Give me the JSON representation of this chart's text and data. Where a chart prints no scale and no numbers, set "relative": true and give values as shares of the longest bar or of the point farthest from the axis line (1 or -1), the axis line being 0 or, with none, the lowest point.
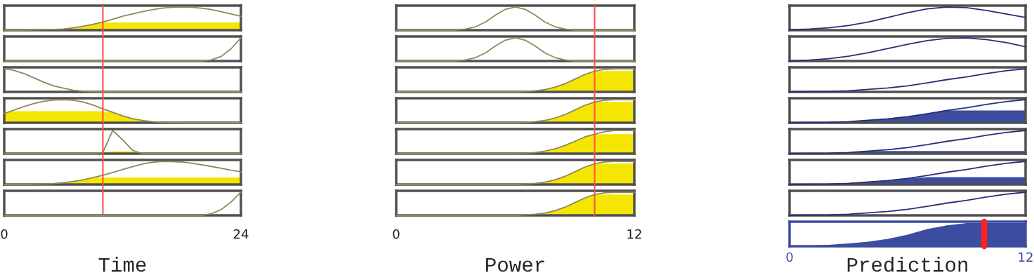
{
  "chart_data": [
    {
      "type": "line",
      "relative": true,
      "categories": [
        null,
        null,
        null,
        null,
        null,
        null,
        null,
        null,
        null,
        null,
        null,
        null,
        null,
        null,
        null,
        null,
        null,
        null,
        null,
        null,
        null,
        null,
        null,
        null,
        null
      ],
      "tick_labels": false,
      "series": [
        {
          "type": "area",
          "color": "#f4e600",
          "values": [
            0,
            0,
            0,
            0.01,
            0.02,
            0.03,
            0.05,
            0.1,
            0.17,
            0.25,
            0.33,
            0.33,
            0.33,
            0.33,
            0.33,
            0.33,
            0.33,
            0.33,
            0.33,
            0.33,
            0.33,
            0.33,
            0.33,
            0.33,
            0.33
          ]
        },
        {
          "color": "#8c8a5a",
          "values": [
            0,
            0,
            0,
            0.01,
            0.02,
            0.03,
            0.05,
            0.1,
            0.17,
            0.25,
            0.35,
            0.47,
            0.6,
            0.7,
            0.8,
            0.88,
            0.95,
            0.99,
            1,
            0.99,
            0.95,
            0.89,
            0.8,
            0.7,
            0.6
          ]
        }
      ]
    },
    {
      "type": "line",
      "relative": true,
      "categories": [
        null,
        null,
        null,
        null,
        null,
        null,
        null,
        null,
        null,
        null,
        null,
        null,
        null,
        null,
        null,
        null,
        null,
        null,
        null,
        null,
        null,
        null,
        null,
        null,
        null
      ],
      "tick_labels": false,
      "series": [
        {
          "color": "#8c8a5a",
          "values": [
            0,
            0,
            0,
            0,
            0,
            0,
            0,
            0,
            0,
            0,
            0,
            0,
            0,
            0,
            0,
            0,
            0,
            0,
            0,
            0,
            0,
            0.05,
            0.2,
            0.53,
            1
          ]
        }
      ]
    },
    {
      "type": "line",
      "relative": true,
      "categories": [
        null,
        null,
        null,
        null,
        null,
        null,
        null,
        null,
        null,
        null,
        null,
        null,
        null,
        null,
        null,
        null,
        null,
        null,
        null,
        null,
        null,
        null,
        null,
        null,
        null
      ],
      "tick_labels": false,
      "series": [
        {
          "color": "#8c8a5a",
          "values": [
            1,
            0.93,
            0.79,
            0.61,
            0.42,
            0.26,
            0.16,
            0.07,
            0.03,
            0.01,
            0,
            0,
            0,
            0,
            0,
            0,
            0,
            0,
            0,
            0,
            0,
            0,
            0,
            0,
            0
          ]
        }
      ]
    },
    {
      "type": "line",
      "relative": true,
      "categories": [
        null,
        null,
        null,
        null,
        null,
        null,
        null,
        null,
        null,
        null,
        null,
        null,
        null,
        null,
        null,
        null,
        null,
        null,
        null,
        null,
        null,
        null,
        null,
        null,
        null
      ],
      "tick_labels": false,
      "series": [
        {
          "type": "area",
          "color": "#f4e600",
          "values": [
            0.4,
            0.5,
            0.5,
            0.5,
            0.5,
            0.5,
            0.5,
            0.5,
            0.5,
            0.5,
            0.5,
            0.45,
            0.3,
            0.18,
            0.1,
            0.05,
            0.02,
            0.01,
            0,
            0,
            0,
            0,
            0,
            0,
            0
          ]
        },
        {
          "color": "#8c8a5a",
          "values": [
            0.4,
            0.55,
            0.7,
            0.83,
            0.93,
            0.98,
            1,
            0.97,
            0.9,
            0.77,
            0.6,
            0.45,
            0.3,
            0.18,
            0.1,
            0.05,
            0.02,
            0.01,
            0,
            0,
            0,
            0,
            0,
            0,
            0
          ]
        }
      ]
    },
    {
      "type": "line",
      "relative": true,
      "categories": [
        null,
        null,
        null,
        null,
        null,
        null,
        null,
        null,
        null,
        null,
        null,
        null,
        null,
        null,
        null,
        null,
        null,
        null,
        null,
        null,
        null,
        null,
        null,
        null,
        null
      ],
      "tick_labels": false,
      "series": [
        {
          "type": "area",
          "color": "#f4e600",
          "values": [
            0,
            0,
            0,
            0,
            0,
            0,
            0,
            0,
            0,
            0,
            0.05,
            0.1,
            0.1,
            0.1,
            0,
            0,
            0,
            0,
            0,
            0,
            0,
            0,
            0,
            0,
            0
          ]
        },
        {
          "color": "#8c8a5a",
          "values": [
            0,
            0,
            0,
            0,
            0,
            0,
            0,
            0,
            0,
            0,
            0.05,
            1,
            0.6,
            0.15,
            0,
            0,
            0,
            0,
            0,
            0,
            0,
            0,
            0,
            0,
            0
          ]
        }
      ]
    },
    {
      "type": "line",
      "relative": true,
      "categories": [
        null,
        null,
        null,
        null,
        null,
        null,
        null,
        null,
        null,
        null,
        null,
        null,
        null,
        null,
        null,
        null,
        null,
        null,
        null,
        null,
        null,
        null,
        null,
        null,
        null
      ],
      "tick_labels": false,
      "series": [
        {
          "type": "area",
          "color": "#f4e600",
          "values": [
            0,
            0,
            0,
            0.01,
            0.02,
            0.04,
            0.08,
            0.13,
            0.2,
            0.3,
            0.3,
            0.3,
            0.3,
            0.3,
            0.3,
            0.3,
            0.3,
            0.3,
            0.3,
            0.3,
            0.3,
            0.3,
            0.3,
            0.3,
            0.3
          ]
        },
        {
          "color": "#8c8a5a",
          "values": [
            0,
            0,
            0,
            0.01,
            0.02,
            0.04,
            0.08,
            0.13,
            0.2,
            0.3,
            0.4,
            0.52,
            0.65,
            0.77,
            0.88,
            0.96,
            1,
            0.99,
            0.97,
            0.92,
            0.85,
            0.78,
            0.7,
            0.62,
            0.55
          ]
        }
      ]
    },
    {
      "type": "line",
      "relative": true,
      "x": [
        0,
        1,
        2,
        3,
        4,
        5,
        6,
        7,
        8,
        9,
        10,
        11,
        12,
        13,
        14,
        15,
        16,
        17,
        18,
        19,
        20,
        21,
        22,
        23,
        24
      ],
      "xlim": [
        0,
        24
      ],
      "xticks": [
        0,
        24
      ],
      "xlabel": "Time",
      "tick_labels": "x",
      "ref_lines": [
        {
          "axis": "x",
          "value": 10,
          "color": "#ff4d4d"
        }
      ],
      "series": [
        {
          "color": "#8c8a5a",
          "values": [
            0,
            0,
            0,
            0,
            0,
            0,
            0,
            0,
            0,
            0,
            0,
            0,
            0,
            0,
            0,
            0,
            0,
            0,
            0,
            0,
            0,
            0.07,
            0.25,
            0.58,
            1
          ]
        }
      ]
    },
    {
      "type": "line",
      "relative": true,
      "categories": [
        null,
        null,
        null,
        null,
        null,
        null,
        null,
        null,
        null,
        null,
        null,
        null,
        null,
        null,
        null,
        null,
        null,
        null,
        null,
        null,
        null,
        null,
        null,
        null,
        null
      ],
      "tick_labels": false,
      "series": [
        {
          "color": "#8c8a5a",
          "values": [
            0,
            0,
            0,
            0,
            0,
            0,
            0,
            0.05,
            0.15,
            0.35,
            0.65,
            0.9,
            1,
            0.9,
            0.65,
            0.35,
            0.15,
            0.05,
            0,
            0,
            0,
            0,
            0,
            0,
            0
          ]
        }
      ]
    },
    {
      "type": "line",
      "relative": true,
      "categories": [
        null,
        null,
        null,
        null,
        null,
        null,
        null,
        null,
        null,
        null,
        null,
        null,
        null,
        null,
        null,
        null,
        null,
        null,
        null,
        null,
        null,
        null,
        null,
        null,
        null
      ],
      "tick_labels": false,
      "series": [
        {
          "color": "#8c8a5a",
          "values": [
            0,
            0,
            0,
            0,
            0,
            0,
            0,
            0.05,
            0.15,
            0.35,
            0.65,
            0.9,
            1,
            0.9,
            0.65,
            0.35,
            0.15,
            0.05,
            0,
            0,
            0,
            0,
            0,
            0,
            0
          ]
        }
      ]
    },
    {
      "type": "line",
      "relative": true,
      "categories": [
        null,
        null,
        null,
        null,
        null,
        null,
        null,
        null,
        null,
        null,
        null,
        null,
        null,
        null,
        null,
        null,
        null,
        null,
        null,
        null,
        null,
        null,
        null,
        null,
        null
      ],
      "tick_labels": false,
      "series": [
        {
          "type": "area",
          "color": "#f4e600",
          "values": [
            0,
            0,
            0,
            0,
            0,
            0,
            0,
            0,
            0,
            0,
            0,
            0,
            0,
            0.02,
            0.05,
            0.1,
            0.2,
            0.35,
            0.55,
            0.75,
            0.9,
            0.9,
            0.9,
            0.9,
            0.9
          ]
        },
        {
          "color": "#8c8a5a",
          "values": [
            0,
            0,
            0,
            0,
            0,
            0,
            0,
            0,
            0,
            0,
            0,
            0,
            0,
            0.02,
            0.05,
            0.1,
            0.2,
            0.35,
            0.55,
            0.75,
            0.9,
            0.97,
            1,
            1,
            1
          ]
        }
      ]
    },
    {
      "type": "line",
      "relative": true,
      "categories": [
        null,
        null,
        null,
        null,
        null,
        null,
        null,
        null,
        null,
        null,
        null,
        null,
        null,
        null,
        null,
        null,
        null,
        null,
        null,
        null,
        null,
        null,
        null,
        null,
        null
      ],
      "tick_labels": false,
      "series": [
        {
          "type": "area",
          "color": "#f4e600",
          "values": [
            0,
            0,
            0,
            0,
            0,
            0,
            0,
            0,
            0,
            0,
            0,
            0,
            0,
            0.02,
            0.05,
            0.1,
            0.2,
            0.35,
            0.55,
            0.75,
            0.9,
            0.9,
            0.9,
            0.9,
            0.9
          ]
        },
        {
          "color": "#8c8a5a",
          "values": [
            0,
            0,
            0,
            0,
            0,
            0,
            0,
            0,
            0,
            0,
            0,
            0,
            0,
            0.02,
            0.05,
            0.1,
            0.2,
            0.35,
            0.55,
            0.75,
            0.9,
            0.97,
            1,
            1,
            1
          ]
        }
      ]
    },
    {
      "type": "line",
      "relative": true,
      "categories": [
        null,
        null,
        null,
        null,
        null,
        null,
        null,
        null,
        null,
        null,
        null,
        null,
        null,
        null,
        null,
        null,
        null,
        null,
        null,
        null,
        null,
        null,
        null,
        null,
        null
      ],
      "tick_labels": false,
      "series": [
        {
          "type": "area",
          "color": "#f4e600",
          "values": [
            0,
            0,
            0,
            0,
            0,
            0,
            0,
            0,
            0,
            0,
            0,
            0,
            0,
            0.02,
            0.05,
            0.11,
            0.21,
            0.35,
            0.53,
            0.72,
            0.84,
            0.84,
            0.84,
            0.84,
            0.84
          ]
        },
        {
          "color": "#8c8a5a",
          "values": [
            0,
            0,
            0,
            0,
            0,
            0,
            0,
            0,
            0,
            0,
            0,
            0,
            0,
            0.02,
            0.05,
            0.11,
            0.21,
            0.35,
            0.53,
            0.72,
            0.84,
            0.95,
            1,
            1,
            1
          ]
        }
      ]
    },
    {
      "type": "line",
      "relative": true,
      "categories": [
        null,
        null,
        null,
        null,
        null,
        null,
        null,
        null,
        null,
        null,
        null,
        null,
        null,
        null,
        null,
        null,
        null,
        null,
        null,
        null,
        null,
        null,
        null,
        null,
        null
      ],
      "tick_labels": false,
      "series": [
        {
          "type": "area",
          "color": "#f4e600",
          "values": [
            0,
            0,
            0,
            0,
            0,
            0,
            0,
            0,
            0,
            0,
            0,
            0,
            0,
            0.02,
            0.05,
            0.1,
            0.2,
            0.35,
            0.55,
            0.75,
            0.9,
            0.9,
            0.9,
            0.9,
            0.9
          ]
        },
        {
          "color": "#8c8a5a",
          "values": [
            0,
            0,
            0,
            0,
            0,
            0,
            0,
            0,
            0,
            0,
            0,
            0,
            0,
            0.02,
            0.05,
            0.1,
            0.2,
            0.35,
            0.55,
            0.75,
            0.9,
            0.97,
            1,
            1,
            1
          ]
        }
      ]
    },
    {
      "type": "line",
      "relative": true,
      "x": [
        0,
        0.5,
        1,
        1.5,
        2,
        2.5,
        3,
        3.5,
        4,
        4.5,
        5,
        5.5,
        6,
        6.5,
        7,
        7.5,
        8,
        8.5,
        9,
        9.5,
        10,
        10.5,
        11,
        11.5,
        12
      ],
      "xlim": [
        0,
        12
      ],
      "xticks": [
        0,
        12
      ],
      "xlabel": "Power",
      "tick_labels": "x",
      "ref_lines": [
        {
          "axis": "x",
          "value": 10,
          "color": "#ff4d4d"
        }
      ],
      "series": [
        {
          "type": "area",
          "color": "#f4e600",
          "values": [
            0,
            0,
            0,
            0,
            0,
            0,
            0,
            0,
            0,
            0,
            0,
            0,
            0,
            0.02,
            0.05,
            0.1,
            0.2,
            0.35,
            0.55,
            0.75,
            0.9,
            0.9,
            0.9,
            0.9,
            0.9
          ]
        },
        {
          "color": "#8c8a5a",
          "values": [
            0,
            0,
            0,
            0,
            0,
            0,
            0,
            0,
            0,
            0,
            0,
            0,
            0,
            0.02,
            0.05,
            0.1,
            0.2,
            0.35,
            0.55,
            0.75,
            0.9,
            0.97,
            1,
            1,
            1
          ]
        }
      ]
    },
    {
      "type": "line",
      "relative": true,
      "categories": [
        null,
        null,
        null,
        null,
        null,
        null,
        null,
        null,
        null,
        null,
        null,
        null,
        null
      ],
      "tick_labels": false,
      "series": [
        {
          "color": "#26307a",
          "values": [
            0.02,
            0.05,
            0.1,
            0.2,
            0.35,
            0.55,
            0.75,
            0.92,
            1,
            0.97,
            0.85,
            0.7,
            0.55
          ]
        }
      ]
    },
    {
      "type": "line",
      "relative": true,
      "categories": [
        null,
        null,
        null,
        null,
        null,
        null,
        null,
        null,
        null,
        null,
        null,
        null,
        null
      ],
      "tick_labels": false,
      "series": [
        {
          "color": "#26307a",
          "values": [
            0,
            0.04,
            0.1,
            0.21,
            0.36,
            0.54,
            0.72,
            0.88,
            0.98,
            1,
            0.93,
            0.8,
            0.62
          ]
        }
      ]
    },
    {
      "type": "line",
      "relative": true,
      "categories": [
        null,
        null,
        null,
        null,
        null,
        null,
        null,
        null,
        null,
        null,
        null,
        null,
        null
      ],
      "tick_labels": false,
      "series": [
        {
          "color": "#26307a",
          "values": [
            0,
            0.01,
            0.02,
            0.05,
            0.11,
            0.17,
            0.26,
            0.39,
            0.53,
            0.65,
            0.79,
            0.91,
            1
          ]
        }
      ]
    },
    {
      "type": "line",
      "relative": true,
      "categories": [
        null,
        null,
        null,
        null,
        null,
        null,
        null,
        null,
        null,
        null,
        null,
        null,
        null
      ],
      "tick_labels": false,
      "series": [
        {
          "type": "area",
          "color": "#3c4ca0",
          "values": [
            0,
            0.01,
            0.02,
            0.05,
            0.11,
            0.17,
            0.26,
            0.39,
            0.53,
            0.53,
            0.53,
            0.53,
            0.53
          ]
        },
        {
          "color": "#26307a",
          "values": [
            0,
            0.01,
            0.02,
            0.05,
            0.11,
            0.17,
            0.26,
            0.39,
            0.53,
            0.65,
            0.79,
            0.91,
            1
          ]
        }
      ]
    },
    {
      "type": "line",
      "relative": true,
      "categories": [
        null,
        null,
        null,
        null,
        null,
        null,
        null,
        null,
        null,
        null,
        null,
        null,
        null
      ],
      "tick_labels": false,
      "series": [
        {
          "type": "area",
          "color": "#3c4ca0",
          "values": [
            0,
            0.01,
            0.02,
            0.05,
            0.11,
            0.11,
            0.11,
            0.11,
            0.11,
            0.11,
            0.11,
            0.11,
            0.11
          ]
        },
        {
          "color": "#26307a",
          "values": [
            0,
            0.01,
            0.02,
            0.05,
            0.11,
            0.17,
            0.26,
            0.39,
            0.53,
            0.65,
            0.79,
            0.91,
            1
          ]
        }
      ]
    },
    {
      "type": "line",
      "relative": true,
      "categories": [
        null,
        null,
        null,
        null,
        null,
        null,
        null,
        null,
        null,
        null,
        null,
        null,
        null
      ],
      "tick_labels": false,
      "series": [
        {
          "type": "area",
          "color": "#3c4ca0",
          "values": [
            0,
            0.01,
            0.02,
            0.05,
            0.11,
            0.17,
            0.26,
            0.32,
            0.32,
            0.32,
            0.32,
            0.32,
            0.32
          ]
        },
        {
          "color": "#26307a",
          "values": [
            0,
            0.01,
            0.02,
            0.05,
            0.11,
            0.17,
            0.26,
            0.39,
            0.53,
            0.65,
            0.79,
            0.91,
            1
          ]
        }
      ]
    },
    {
      "type": "line",
      "relative": true,
      "categories": [
        null,
        null,
        null,
        null,
        null,
        null,
        null,
        null,
        null,
        null,
        null,
        null,
        null
      ],
      "tick_labels": false,
      "series": [
        {
          "color": "#26307a",
          "values": [
            0,
            0.01,
            0.02,
            0.05,
            0.11,
            0.17,
            0.26,
            0.39,
            0.53,
            0.65,
            0.79,
            0.91,
            1
          ]
        }
      ]
    },
    {
      "type": "line",
      "relative": true,
      "x": [
        0,
        1,
        2,
        3,
        4,
        5,
        6,
        7,
        8,
        9,
        10,
        11,
        12
      ],
      "xlim": [
        0,
        12
      ],
      "xticks": [
        0,
        12
      ],
      "xlabel": "Prediction",
      "tick_labels": "x",
      "ref_lines": [
        {
          "axis": "x",
          "value": 9.9,
          "color": "#ff2020"
        }
      ],
      "series": [
        {
          "type": "area",
          "color": "#3c4ca0",
          "values": [
            0,
            0.02,
            0.06,
            0.12,
            0.2,
            0.32,
            0.5,
            0.74,
            0.9,
            1,
            1,
            1,
            1
          ]
        }
      ]
    }
  ]
}
